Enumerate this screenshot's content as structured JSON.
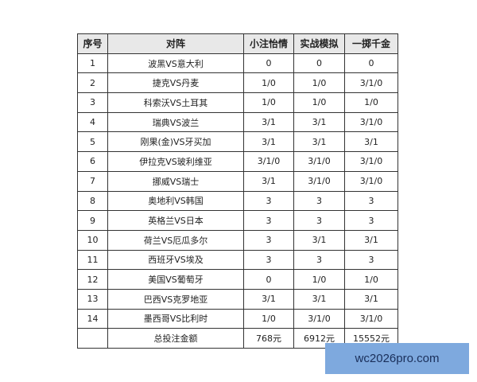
{
  "headers": [
    "序号",
    "对阵",
    "小注怡情",
    "实战模拟",
    "一掷千金"
  ],
  "rows": [
    [
      "1",
      "波黑VS意大利",
      "0",
      "0",
      "0"
    ],
    [
      "2",
      "捷克VS丹麦",
      "1/0",
      "1/0",
      "3/1/0"
    ],
    [
      "3",
      "科索沃VS土耳其",
      "1/0",
      "1/0",
      "1/0"
    ],
    [
      "4",
      "瑞典VS波兰",
      "3/1",
      "3/1",
      "3/1/0"
    ],
    [
      "5",
      "刚果(金)VS牙买加",
      "3/1",
      "3/1",
      "3/1"
    ],
    [
      "6",
      "伊拉克VS玻利维亚",
      "3/1/0",
      "3/1/0",
      "3/1/0"
    ],
    [
      "7",
      "挪威VS瑞士",
      "3/1",
      "3/1/0",
      "3/1/0"
    ],
    [
      "8",
      "奥地利VS韩国",
      "3",
      "3",
      "3"
    ],
    [
      "9",
      "英格兰VS日本",
      "3",
      "3",
      "3"
    ],
    [
      "10",
      "荷兰VS厄瓜多尔",
      "3",
      "3/1",
      "3/1"
    ],
    [
      "11",
      "西班牙VS埃及",
      "3",
      "3",
      "3"
    ],
    [
      "12",
      "美国VS葡萄牙",
      "0",
      "1/0",
      "1/0"
    ],
    [
      "13",
      "巴西VS克罗地亚",
      "3/1",
      "3/1",
      "3/1"
    ],
    [
      "14",
      "墨西哥VS比利时",
      "1/0",
      "3/1/0",
      "3/1/0"
    ]
  ],
  "total": [
    "",
    "总投注金额",
    "768元",
    "6912元",
    "15552元"
  ],
  "watermark": "wc2026pro.com"
}
